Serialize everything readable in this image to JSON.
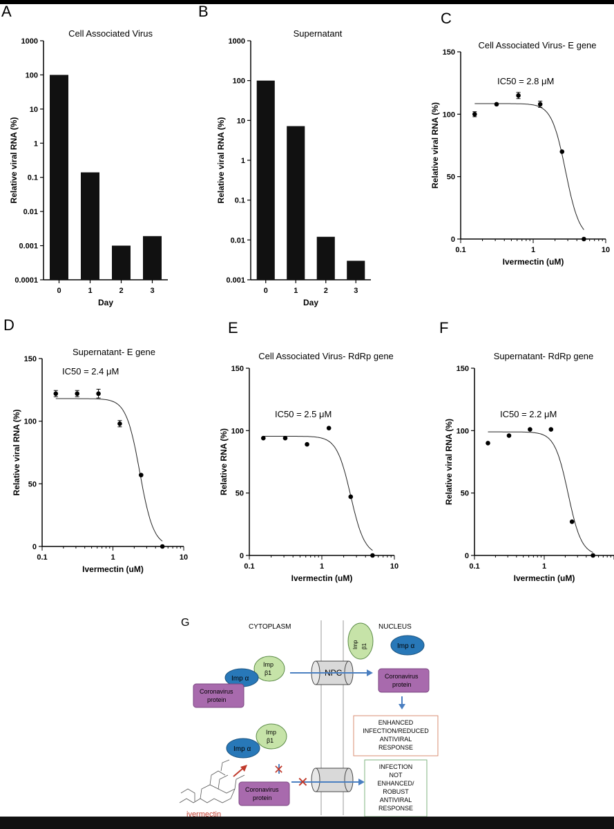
{
  "panels": {
    "A": "A",
    "B": "B",
    "C": "C",
    "D": "D",
    "E": "E",
    "F": "F",
    "G": "G"
  },
  "chart_data": [
    {
      "type": "bar",
      "title": "Cell Associated Virus",
      "xlabel": "Day",
      "ylabel": "Relative viral RNA (%)",
      "categories": [
        "0",
        "1",
        "2",
        "3"
      ],
      "values": [
        100,
        0.14,
        0.001,
        0.0019
      ],
      "ylim": [
        0.0001,
        1000
      ],
      "yscale": "log",
      "yticks": [
        "0.0001",
        "0.001",
        "0.01",
        "0.1",
        "1",
        "10",
        "100",
        "1000"
      ]
    },
    {
      "type": "bar",
      "title": "Supernatant",
      "xlabel": "Day",
      "ylabel": "Relative viral RNA (%)",
      "categories": [
        "0",
        "1",
        "2",
        "3"
      ],
      "values": [
        100,
        7.2,
        0.012,
        0.003
      ],
      "ylim": [
        0.001,
        1000
      ],
      "yscale": "log",
      "yticks": [
        "0.001",
        "0.01",
        "0.1",
        "1",
        "10",
        "100",
        "1000"
      ]
    },
    {
      "type": "scatter",
      "title": "Cell Associated Virus- E gene",
      "xlabel": "Ivermectin (uM)",
      "ylabel": "Relative viral RNA (%)",
      "annotation": "IC50 = 2.8 μM",
      "x": [
        0.156,
        0.3125,
        0.625,
        1.25,
        2.5,
        5
      ],
      "y": [
        100,
        108,
        115,
        108,
        70,
        0
      ],
      "err": [
        2,
        0,
        2.5,
        2.5,
        0,
        0
      ],
      "ylim": [
        0,
        150
      ],
      "xlim": [
        0.1,
        10
      ],
      "yticks": [
        "0",
        "50",
        "100",
        "150"
      ],
      "xticks": [
        "0.1",
        "1",
        "10"
      ],
      "fit": {
        "top": 108.5,
        "ic50": 2.8,
        "hill": 4.5
      }
    },
    {
      "type": "scatter",
      "title": "Supernatant- E gene",
      "xlabel": "Ivermectin (uM)",
      "ylabel": "Relative viral RNA (%)",
      "annotation": "IC50 = 2.4 μM",
      "x": [
        0.156,
        0.3125,
        0.625,
        1.25,
        2.5,
        5
      ],
      "y": [
        122,
        122,
        122,
        98,
        57,
        0
      ],
      "err": [
        2.5,
        2.5,
        3.5,
        2.5,
        0,
        0
      ],
      "ylim": [
        0,
        150
      ],
      "xlim": [
        0.1,
        10
      ],
      "yticks": [
        "0",
        "50",
        "100",
        "150"
      ],
      "xticks": [
        "0.1",
        "1",
        "10"
      ],
      "fit": {
        "top": 118,
        "ic50": 2.4,
        "hill": 4.5
      }
    },
    {
      "type": "scatter",
      "title": "Cell Associated Virus- RdRp gene",
      "xlabel": "Ivermectin (uM)",
      "ylabel": "Relative RNA (%)",
      "annotation": "IC50 = 2.5 μM",
      "x": [
        0.156,
        0.3125,
        0.625,
        1.25,
        2.5,
        5
      ],
      "y": [
        94,
        94,
        89,
        102,
        47,
        0
      ],
      "err": [
        0,
        0,
        0,
        0,
        0,
        0
      ],
      "ylim": [
        0,
        150
      ],
      "xlim": [
        0.1,
        10
      ],
      "yticks": [
        "0",
        "50",
        "100",
        "150"
      ],
      "xticks": [
        "0.1",
        "1",
        "10"
      ],
      "fit": {
        "top": 95.5,
        "ic50": 2.5,
        "hill": 4.5
      }
    },
    {
      "type": "scatter",
      "title": "Supernatant- RdRp gene",
      "xlabel": "Ivermectin (uM)",
      "ylabel": "Relative viral RNA (%)",
      "annotation": "IC50 = 2.2 μM",
      "x": [
        0.156,
        0.3125,
        0.625,
        1.25,
        2.5,
        5
      ],
      "y": [
        90,
        96,
        101,
        101,
        27,
        0
      ],
      "err": [
        0,
        0,
        0,
        0,
        0,
        0
      ],
      "ylim": [
        0,
        150
      ],
      "xlim": [
        0.1,
        10
      ],
      "yticks": [
        "0",
        "50",
        "100",
        "150"
      ],
      "xticks": [
        "0.1",
        "1"
      ],
      "fit": {
        "top": 99,
        "ic50": 2.2,
        "hill": 4.5
      }
    }
  ],
  "diagram": {
    "cytoplasm": "CYTOPLASM",
    "nucleus": "NUCLEUS",
    "npc": "NPC",
    "imp_alpha": "Imp α",
    "imp_beta_top": "Imp",
    "imp_beta_bottom": "β1",
    "protein_top": "Coronavirus",
    "protein_bottom": "protein",
    "enhanced": [
      "ENHANCED",
      "INFECTION/REDUCED",
      "ANTIVIRAL",
      "RESPONSE"
    ],
    "not_enhanced": [
      "INFECTION",
      "NOT",
      "ENHANCED/",
      "ROBUST",
      "ANTIVIRAL",
      "RESPONSE"
    ],
    "drug": "ivermectin",
    "colors": {
      "imp_alpha": "#2878b8",
      "imp_beta": "#c6e3a8",
      "protein": "#a86aad",
      "arrow": "#4a7fc1",
      "drug": "#c0392b",
      "enhanced_border": "#d98c70",
      "not_border": "#7fb37f"
    }
  }
}
